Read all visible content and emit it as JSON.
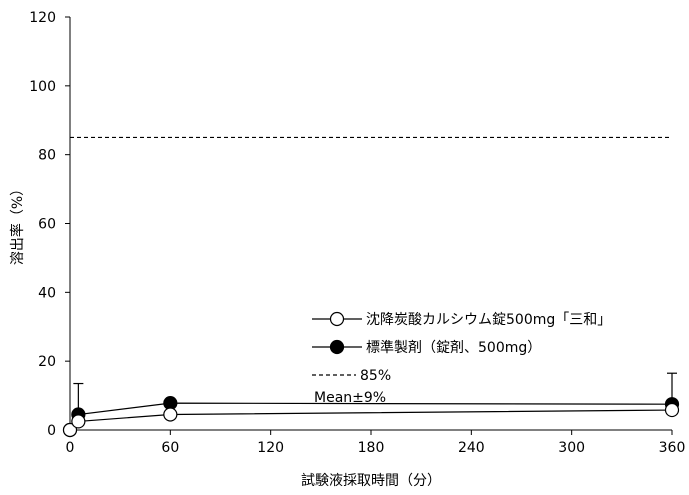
{
  "chart_data": {
    "type": "line",
    "xlabel": "試験液採取時間（分）",
    "ylabel": "溶出率（%）",
    "xlim": [
      0,
      360
    ],
    "ylim": [
      0,
      120
    ],
    "x_ticks": [
      0,
      60,
      120,
      180,
      240,
      300,
      360
    ],
    "y_ticks": [
      0,
      20,
      40,
      60,
      80,
      100,
      120
    ],
    "grid": false,
    "legend_position": "center-right",
    "reference_line": {
      "label": "85%",
      "y": 85,
      "style": "dashed"
    },
    "legend_note": "Mean±9%",
    "series": [
      {
        "name": "沈降炭酸カルシウム錠500mg「三和」",
        "marker": "open-circle",
        "x": [
          0,
          5,
          60,
          360
        ],
        "y": [
          0,
          2.5,
          4.5,
          5.8
        ]
      },
      {
        "name": "標準製剤（錠剤、500mg）",
        "marker": "filled-circle",
        "x": [
          0,
          5,
          60,
          360
        ],
        "y": [
          0,
          4.5,
          7.8,
          7.5
        ],
        "error_upper": [
          0,
          9,
          0,
          9
        ]
      }
    ]
  }
}
